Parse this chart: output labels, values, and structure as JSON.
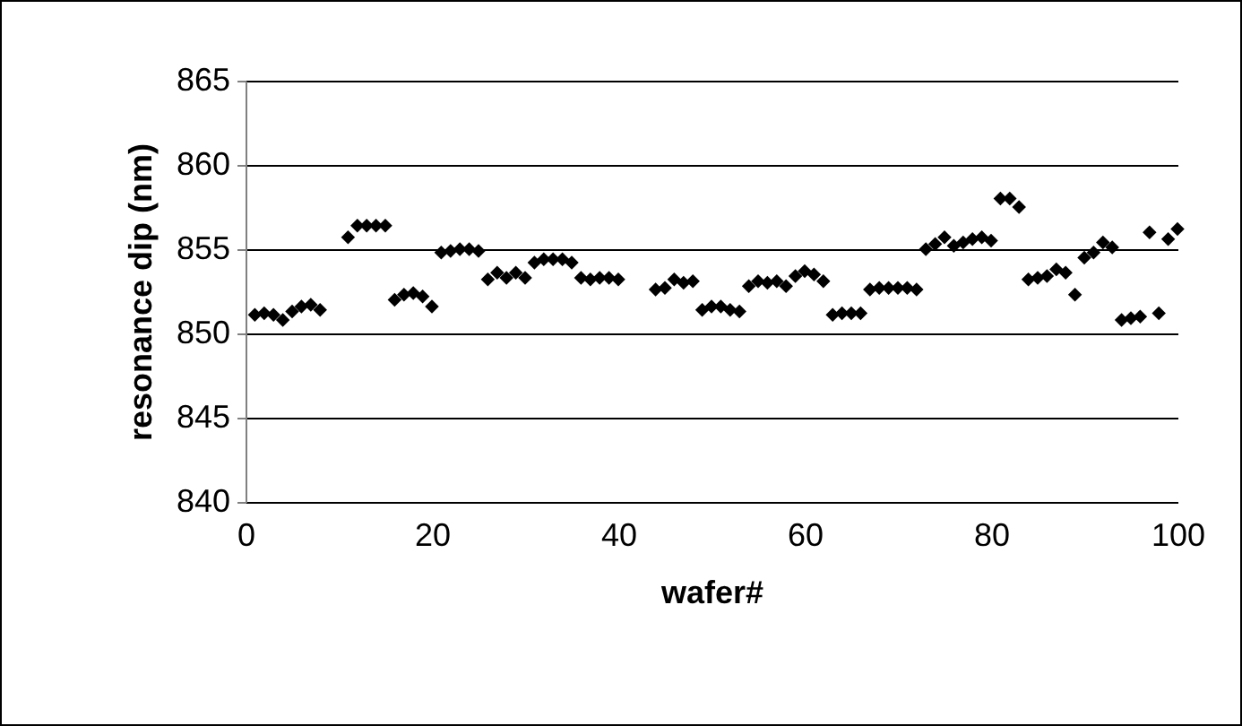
{
  "chart_data": {
    "type": "scatter",
    "xlabel": "wafer#",
    "ylabel": "resonance dip (nm)",
    "x": [
      1,
      2,
      3,
      4,
      5,
      6,
      7,
      8,
      11,
      12,
      13,
      14,
      15,
      16,
      17,
      18,
      19,
      20,
      21,
      22,
      23,
      24,
      25,
      26,
      27,
      28,
      29,
      30,
      31,
      32,
      33,
      34,
      35,
      36,
      37,
      38,
      39,
      40,
      44,
      45,
      46,
      47,
      48,
      49,
      50,
      51,
      52,
      53,
      54,
      55,
      56,
      57,
      58,
      59,
      60,
      61,
      62,
      63,
      64,
      65,
      66,
      67,
      68,
      69,
      70,
      71,
      72,
      73,
      74,
      75,
      76,
      77,
      78,
      79,
      80,
      81,
      82,
      83,
      84,
      85,
      86,
      87,
      88,
      89,
      90,
      91,
      92,
      93,
      94,
      95,
      96,
      97,
      98,
      99,
      100
    ],
    "series": [
      {
        "color": "#000000",
        "values": [
          851.1,
          851.2,
          851.1,
          850.8,
          851.3,
          851.6,
          851.7,
          851.4,
          855.7,
          856.4,
          856.4,
          856.4,
          856.4,
          852.0,
          852.3,
          852.4,
          852.2,
          851.6,
          854.8,
          854.9,
          855.0,
          855.0,
          854.9,
          853.2,
          853.6,
          853.3,
          853.6,
          853.3,
          854.2,
          854.4,
          854.4,
          854.4,
          854.2,
          853.3,
          853.2,
          853.3,
          853.3,
          853.2,
          852.6,
          852.7,
          853.2,
          853.0,
          853.1,
          851.4,
          851.6,
          851.6,
          851.4,
          851.3,
          852.8,
          853.1,
          853.0,
          853.1,
          852.8,
          853.4,
          853.7,
          853.5,
          853.1,
          851.1,
          851.2,
          851.2,
          851.2,
          852.6,
          852.7,
          852.7,
          852.7,
          852.7,
          852.6,
          855.0,
          855.3,
          855.7,
          855.2,
          855.4,
          855.6,
          855.7,
          855.5,
          858.0,
          858.0,
          857.5,
          853.2,
          853.3,
          853.4,
          853.8,
          853.6,
          852.3,
          854.5,
          854.8,
          855.4,
          855.1,
          850.8,
          850.9,
          851.0,
          856.0,
          851.2,
          855.6,
          856.2
        ]
      }
    ],
    "xlim": [
      0,
      100
    ],
    "xticks": [
      0,
      20,
      40,
      60,
      80,
      100
    ],
    "ylim": [
      840,
      865
    ],
    "yticks": [
      840,
      845,
      850,
      855,
      860,
      865
    ],
    "grid": "y",
    "marker": "diamond"
  }
}
